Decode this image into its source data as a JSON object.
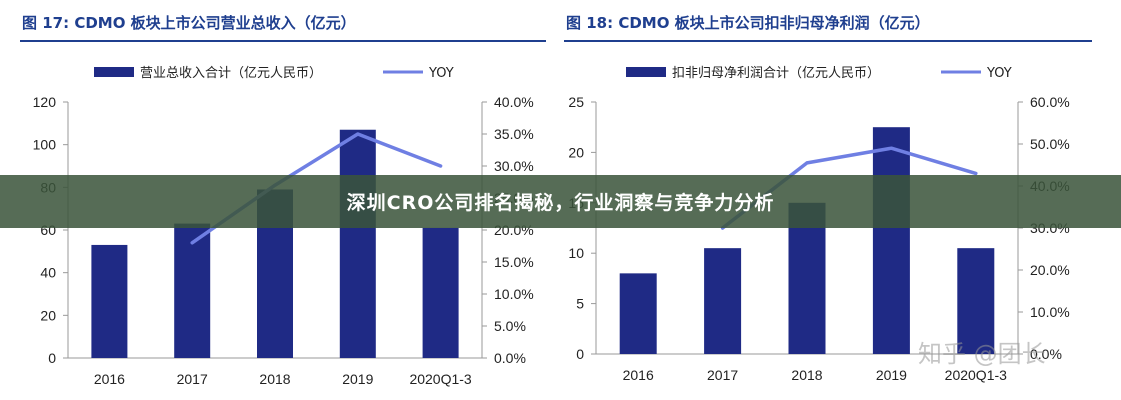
{
  "banner": {
    "text": "深圳CRO公司排名揭秘，行业洞察与竞争力分析"
  },
  "watermark": {
    "text": "知乎 @团长"
  },
  "colors": {
    "bar": "#1f2a85",
    "line": "#6f7fe3",
    "rule": "#1f3f8f",
    "grid": "#c8c8c8"
  },
  "charts": [
    {
      "fig_title": "图 17:  CDMO 板块上市公司营业总收入（亿元）",
      "legend_bar": "营业总收入合计（亿元人民币）",
      "legend_line": "YOY"
    },
    {
      "fig_title": "图 18:  CDMO 板块上市公司扣非归母净利润（亿元）",
      "legend_bar": "扣非归母净利润合计（亿元人民币）",
      "legend_line": "YOY"
    }
  ],
  "chart_data": [
    {
      "type": "bar",
      "title": "图 17:  CDMO 板块上市公司营业总收入（亿元）",
      "categories": [
        "2016",
        "2017",
        "2018",
        "2019",
        "2020Q1-3"
      ],
      "series": [
        {
          "name": "营业总收入合计（亿元人民币）",
          "type": "bar",
          "axis": "left",
          "values": [
            53,
            63,
            79,
            107,
            61
          ]
        },
        {
          "name": "YOY",
          "type": "line",
          "axis": "right",
          "values": [
            null,
            0.18,
            0.27,
            0.35,
            0.3
          ]
        }
      ],
      "ylim_left": [
        0,
        120
      ],
      "yticks_left": [
        "0",
        "20",
        "40",
        "60",
        "80",
        "100",
        "120"
      ],
      "ylim_right": [
        0,
        0.4
      ],
      "yticks_right": [
        "0.0%",
        "5.0%",
        "10.0%",
        "15.0%",
        "20.0%",
        "25.0%",
        "30.0%",
        "35.0%",
        "40.0%"
      ],
      "legend": "top",
      "grid": false
    },
    {
      "type": "bar",
      "title": "图 18:  CDMO 板块上市公司扣非归母净利润（亿元）",
      "categories": [
        "2016",
        "2017",
        "2018",
        "2019",
        "2020Q1-3"
      ],
      "series": [
        {
          "name": "扣非归母净利润合计（亿元人民币）",
          "type": "bar",
          "axis": "left",
          "values": [
            8,
            10.5,
            15,
            22.5,
            10.5
          ]
        },
        {
          "name": "YOY",
          "type": "line",
          "axis": "right",
          "values": [
            null,
            0.3,
            0.455,
            0.49,
            0.43
          ]
        }
      ],
      "ylim_left": [
        0,
        25
      ],
      "yticks_left": [
        "0",
        "5",
        "10",
        "15",
        "20",
        "25"
      ],
      "ylim_right": [
        0,
        0.6
      ],
      "yticks_right": [
        "0.0%",
        "10.0%",
        "20.0%",
        "30.0%",
        "40.0%",
        "50.0%",
        "60.0%"
      ],
      "legend": "top",
      "grid": false
    }
  ]
}
